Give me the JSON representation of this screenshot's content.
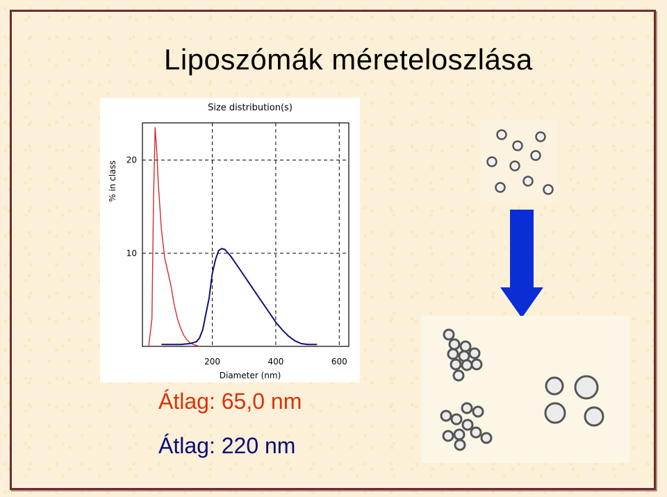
{
  "slide": {
    "title": "Liposzómák méreteloszlása",
    "caption_red": "Átlag: 65,0 nm",
    "caption_blue": "Átlag: 220 nm"
  },
  "colors": {
    "red_series": "#d42a2a",
    "blue_series": "#10107a",
    "arrow": "#0a2ed6",
    "frame": "#6f2b2b"
  },
  "icons": {
    "arrow": "down-arrow-icon",
    "small_vesicles": "dispersed-small-vesicles-icon",
    "aggregated_vesicles": "aggregated-vesicles-icon",
    "large_vesicles": "large-vesicles-icon"
  },
  "chart_data": {
    "type": "line",
    "title": "Size distribution(s)",
    "xlabel": "Diameter (nm)",
    "ylabel": "% in class",
    "xlim": [
      -20,
      630
    ],
    "ylim": [
      0,
      24
    ],
    "xticks": [
      200,
      400,
      600
    ],
    "yticks": [
      10,
      20
    ],
    "grid": true,
    "series": [
      {
        "color": "#d42a2a",
        "x": [
          0,
          10,
          15,
          20,
          25,
          30,
          35,
          40,
          45,
          50,
          60,
          70,
          80,
          90,
          100,
          110,
          120,
          130,
          140,
          150,
          160
        ],
        "y": [
          0,
          3,
          16,
          23.5,
          21,
          17.5,
          15,
          12.5,
          11,
          9.5,
          8,
          6.5,
          4.5,
          3,
          2,
          1.2,
          0.7,
          0.4,
          0.2,
          0.1,
          0
        ]
      },
      {
        "color": "#10107a",
        "x": [
          40,
          100,
          130,
          150,
          160,
          170,
          180,
          190,
          200,
          210,
          220,
          230,
          240,
          250,
          260,
          280,
          300,
          320,
          340,
          360,
          380,
          400,
          420,
          440,
          460,
          480,
          500,
          520,
          530
        ],
        "y": [
          0.2,
          0.2,
          0.3,
          0.5,
          0.9,
          1.8,
          3.5,
          5.2,
          7.8,
          9.3,
          10.3,
          10.5,
          10.4,
          10.0,
          9.6,
          8.6,
          7.6,
          6.6,
          5.6,
          4.6,
          3.6,
          2.6,
          1.8,
          1.1,
          0.6,
          0.3,
          0.2,
          0.2,
          0.2
        ]
      }
    ]
  }
}
